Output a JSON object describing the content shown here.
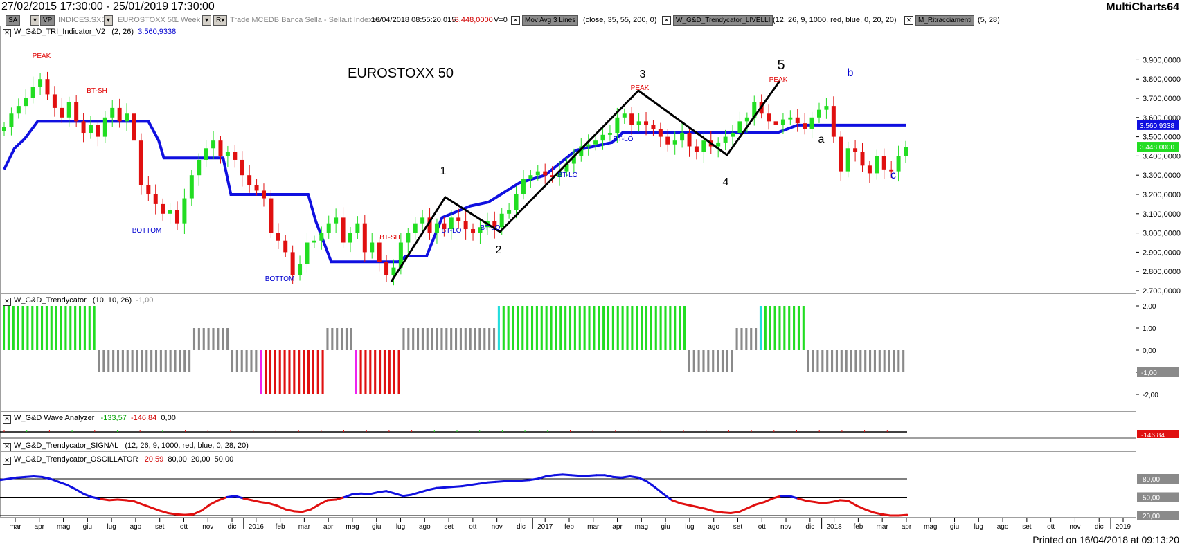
{
  "header": {
    "date_range": "27/02/2015 17:30:00 - 25/01/2019 17:30:00",
    "app_name": "MultiCharts64"
  },
  "toolbar": {
    "sa_label": "SA",
    "vp_label": "VP",
    "symbol": "INDICES.SX5E",
    "description": "EUROSTOXX 50",
    "resolution": "1 Week",
    "r_label": "R",
    "source": "Trade  MCEDB  Banca Sella - Sella.it  Indexes",
    "datetime": "16/04/2018  08:55:20.015",
    "change": "-3.448,0000",
    "volume": "V=0",
    "study1_name": "Mov Avg 3 Lines",
    "study1_params": "(close, 35, 55, 200, 0)",
    "study2_name": "W_G&D_Trendycator_LIVELLI",
    "study2_params": "(12, 26, 9, 1000, red, blue, 0, 20, 20)",
    "study3_name": "M_Ritracciamenti",
    "study3_params": "(5, 28)"
  },
  "panes": {
    "p1": {
      "name": "W_G&D_TRI_Indicator_V2",
      "params": "(2, 26)",
      "value": "3.560,9338"
    },
    "p2": {
      "name": "W_G&D_Trendycator",
      "params": "(10, 10, 26)",
      "value": "-1,00"
    },
    "p3": {
      "name": "W_G&D Wave Analyzer",
      "v1": "-133,57",
      "v2": "-146,84",
      "v3": "0,00"
    },
    "p4": {
      "name": "W_G&D_Trendycator_SIGNAL",
      "params": "(12, 26, 9, 1000, red, blue, 0, 28, 20)"
    },
    "p5": {
      "name": "W_G&D_Trendycator_OSCILLATOR",
      "v1": "20,59",
      "v2": "80,00",
      "v3": "20,00",
      "v4": "50,00"
    }
  },
  "footer": {
    "printed": "Printed on 16/04/2018 at 09:13:20"
  },
  "colors": {
    "up": "#22dd22",
    "down": "#e01010",
    "grey": "#8a8a8a",
    "trend": "#1010e0",
    "wave": "#000000",
    "cyan": "#22dddd",
    "magenta": "#ee22ee"
  },
  "chart_data": {
    "type": "candlestick",
    "title": "EUROSTOXX 50",
    "x_ticks": [
      "mar",
      "apr",
      "mag",
      "giu",
      "lug",
      "ago",
      "set",
      "ott",
      "nov",
      "dic",
      "2016",
      "feb",
      "mar",
      "apr",
      "mag",
      "giu",
      "lug",
      "ago",
      "set",
      "ott",
      "nov",
      "dic",
      "2017",
      "feb",
      "mar",
      "apr",
      "mag",
      "giu",
      "lug",
      "ago",
      "set",
      "ott",
      "nov",
      "dic",
      "2018",
      "feb",
      "mar",
      "apr",
      "mag",
      "giu",
      "lug",
      "ago",
      "set",
      "ott",
      "nov",
      "dic",
      "2019"
    ],
    "y_ticks": [
      "3.900,0000",
      "3.800,0000",
      "3.700,0000",
      "3.600,0000",
      "3.500,0000",
      "3.400,0000",
      "3.300,0000",
      "3.200,0000",
      "3.100,0000",
      "3.000,0000",
      "2.900,0000",
      "2.800,0000",
      "2.700,0000"
    ],
    "ylim": [
      2650,
      3950
    ],
    "price_close": [
      3550,
      3620,
      3660,
      3700,
      3760,
      3800,
      3720,
      3650,
      3600,
      3680,
      3580,
      3520,
      3560,
      3500,
      3600,
      3650,
      3580,
      3620,
      3480,
      3250,
      3200,
      3150,
      3100,
      3120,
      3050,
      3180,
      3300,
      3380,
      3440,
      3480,
      3400,
      3420,
      3380,
      3300,
      3250,
      3220,
      3180,
      3000,
      2960,
      2900,
      2780,
      2840,
      2950,
      2960,
      3000,
      3050,
      3080,
      2950,
      3000,
      3050,
      2900,
      2950,
      2850,
      2780,
      2820,
      2950,
      3000,
      3050,
      3080,
      3000,
      3050,
      3020,
      3080,
      3060,
      3020,
      3000,
      3030,
      3060,
      3030,
      3100,
      3120,
      3200,
      3280,
      3300,
      3320,
      3300,
      3290,
      3320,
      3360,
      3400,
      3450,
      3460,
      3480,
      3510,
      3520,
      3600,
      3620,
      3560,
      3580,
      3560,
      3540,
      3500,
      3460,
      3480,
      3520,
      3450,
      3420,
      3480,
      3450,
      3470,
      3500,
      3520,
      3580,
      3600,
      3680,
      3620,
      3580,
      3560,
      3590,
      3600,
      3570,
      3540,
      3600,
      3640,
      3660,
      3500,
      3320,
      3440,
      3420,
      3350,
      3310,
      3400,
      3330,
      3320,
      3400,
      3448
    ],
    "trend_label_last": "3.560,9338",
    "last_price_label": "3.448,0000",
    "annotations": [
      {
        "text": "PEAK"
      },
      {
        "text": "BT-SH"
      },
      {
        "text": "BOTTOM"
      },
      {
        "text": "BOTTOM"
      },
      {
        "text": "BT-SH"
      },
      {
        "text": "BT-LO"
      },
      {
        "text": "BT-LO"
      },
      {
        "text": "BT-LO"
      },
      {
        "text": "BT-LO"
      },
      {
        "text": "PEAK"
      },
      {
        "text": "PEAK"
      }
    ],
    "wave_labels": [
      "1",
      "2",
      "3",
      "4",
      "5",
      "a",
      "b",
      "c"
    ],
    "wave_points": [
      [
        2645,
        "lug"
      ],
      [
        3095,
        "set"
      ],
      [
        2935,
        "nov"
      ],
      [
        3650,
        "mag"
      ],
      [
        3320,
        "set"
      ],
      [
        3695,
        "nov"
      ]
    ],
    "trendycator_ticks": [
      "2,00",
      "1,00",
      "0,00",
      "-1,00",
      "-2,00"
    ],
    "trendycator_segments": [
      {
        "state": "up",
        "count": 20
      },
      {
        "state": "down0",
        "count": 20
      },
      {
        "state": "neutral",
        "count": 8
      },
      {
        "state": "down0",
        "count": 6
      },
      {
        "state": "down",
        "count": 14
      },
      {
        "state": "neutral",
        "count": 6
      },
      {
        "state": "down",
        "count": 10
      },
      {
        "state": "neutral",
        "count": 20
      },
      {
        "state": "up",
        "count": 40
      },
      {
        "state": "down0",
        "count": 10
      },
      {
        "state": "neutral",
        "count": 5
      },
      {
        "state": "up",
        "count": 10
      },
      {
        "state": "down0",
        "count": 21
      }
    ],
    "wave_analyzer_label": "-146,84",
    "oscillator_ticks": [
      "80,00",
      "50,00",
      "20,00"
    ],
    "oscillator_values": [
      78,
      80,
      82,
      83,
      84,
      83,
      80,
      75,
      70,
      63,
      55,
      50,
      47,
      45,
      46,
      45,
      43,
      38,
      33,
      28,
      24,
      22,
      21,
      22,
      28,
      38,
      45,
      50,
      52,
      48,
      45,
      42,
      40,
      36,
      30,
      27,
      26,
      30,
      38,
      45,
      46,
      50,
      55,
      56,
      55,
      58,
      60,
      56,
      52,
      54,
      58,
      62,
      65,
      66,
      67,
      68,
      70,
      72,
      74,
      75,
      76,
      76,
      77,
      78,
      80,
      84,
      86,
      87,
      86,
      85,
      85,
      86,
      86,
      83,
      82,
      84,
      82,
      76,
      66,
      55,
      45,
      40,
      37,
      34,
      31,
      27,
      25,
      24,
      26,
      32,
      38,
      42,
      48,
      52,
      52,
      48,
      44,
      42,
      40,
      42,
      45,
      44,
      36,
      30,
      25,
      22,
      20,
      20,
      21
    ]
  }
}
